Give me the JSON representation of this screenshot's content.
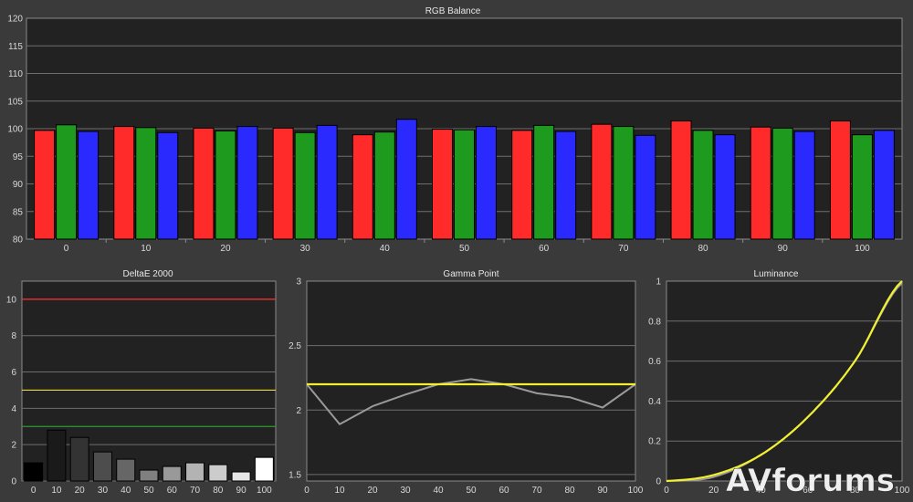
{
  "watermark": "AVforums",
  "chart_data": [
    {
      "id": "rgb",
      "type": "bar",
      "title": "RGB Balance",
      "categories": [
        "0",
        "10",
        "20",
        "30",
        "40",
        "50",
        "60",
        "70",
        "80",
        "90",
        "100"
      ],
      "series": [
        {
          "values": [
            99.7,
            100.4,
            100.1,
            100.1,
            98.9,
            99.9,
            99.7,
            100.8,
            101.4,
            100.3,
            101.4
          ],
          "color": "#ff2a2a"
        },
        {
          "values": [
            100.7,
            100.2,
            99.6,
            99.3,
            99.4,
            99.8,
            100.6,
            100.4,
            99.7,
            100.1,
            98.9
          ],
          "color": "#1e9a1e"
        },
        {
          "values": [
            99.5,
            99.3,
            100.4,
            100.6,
            101.7,
            100.4,
            99.5,
            98.8,
            98.9,
            99.5,
            99.7
          ],
          "color": "#2a2aff"
        }
      ],
      "ylim": [
        80,
        120
      ],
      "yticks": [
        "80",
        "85",
        "90",
        "95",
        "100",
        "105",
        "110",
        "115",
        "120"
      ],
      "grid": true
    },
    {
      "id": "deltae",
      "type": "bar",
      "title": "DeltaE 2000",
      "categories": [
        "0",
        "10",
        "20",
        "30",
        "40",
        "50",
        "60",
        "70",
        "80",
        "90",
        "100"
      ],
      "values": [
        1.0,
        2.8,
        2.4,
        1.6,
        1.2,
        0.6,
        0.8,
        1.0,
        0.9,
        0.5,
        1.3
      ],
      "bar_colors": [
        "#000000",
        "#1a1a1a",
        "#333333",
        "#4d4d4d",
        "#666666",
        "#808080",
        "#999999",
        "#b3b3b3",
        "#cccccc",
        "#e6e6e6",
        "#ffffff"
      ],
      "ylim": [
        0,
        11
      ],
      "yticks": [
        "0",
        "2",
        "4",
        "6",
        "8",
        "10"
      ],
      "threshold_lines": [
        {
          "value": 10,
          "color": "#ff3030"
        },
        {
          "value": 5,
          "color": "#e8d84a"
        },
        {
          "value": 3,
          "color": "#2e9a2e"
        }
      ],
      "grid": true
    },
    {
      "id": "gamma",
      "type": "line",
      "title": "Gamma Point",
      "x": [
        "0",
        "10",
        "20",
        "30",
        "40",
        "50",
        "60",
        "70",
        "80",
        "90",
        "100"
      ],
      "series": [
        {
          "values": [
            2.2,
            2.2,
            2.2,
            2.2,
            2.2,
            2.2,
            2.2,
            2.2,
            2.2,
            2.2,
            2.2
          ],
          "color": "#f0f030"
        },
        {
          "values": [
            2.2,
            1.89,
            2.03,
            2.12,
            2.2,
            2.24,
            2.2,
            2.13,
            2.1,
            2.02,
            2.2
          ],
          "color": "#9a9a9a"
        }
      ],
      "ylim": [
        1.45,
        3
      ],
      "yticks": [
        "1.5",
        "2",
        "2.5",
        "3"
      ],
      "grid": true
    },
    {
      "id": "lum",
      "type": "line",
      "title": "Luminance",
      "x": [
        "0",
        "20",
        "40",
        "60",
        "80",
        "100"
      ],
      "series": [
        {
          "values": [
            0,
            0.03,
            0.13,
            0.32,
            0.6,
            1.0
          ],
          "color": "#f0f030"
        },
        {
          "values": [
            0,
            0.02,
            0.13,
            0.32,
            0.6,
            0.99
          ],
          "color": "#9a9a9a"
        }
      ],
      "ylim": [
        0,
        1
      ],
      "yticks": [
        "0",
        "0.2",
        "0.4",
        "0.6",
        "0.8",
        "1"
      ],
      "grid": true
    }
  ]
}
